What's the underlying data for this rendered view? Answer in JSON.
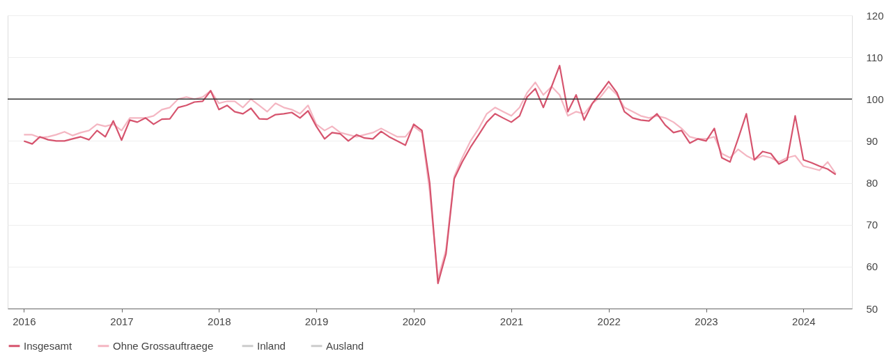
{
  "chart_data": {
    "type": "line",
    "x": [
      "2016-01",
      "2016-02",
      "2016-03",
      "2016-04",
      "2016-05",
      "2016-06",
      "2016-07",
      "2016-08",
      "2016-09",
      "2016-10",
      "2016-11",
      "2016-12",
      "2017-01",
      "2017-02",
      "2017-03",
      "2017-04",
      "2017-05",
      "2017-06",
      "2017-07",
      "2017-08",
      "2017-09",
      "2017-10",
      "2017-11",
      "2017-12",
      "2018-01",
      "2018-02",
      "2018-03",
      "2018-04",
      "2018-05",
      "2018-06",
      "2018-07",
      "2018-08",
      "2018-09",
      "2018-10",
      "2018-11",
      "2018-12",
      "2019-01",
      "2019-02",
      "2019-03",
      "2019-04",
      "2019-05",
      "2019-06",
      "2019-07",
      "2019-08",
      "2019-09",
      "2019-10",
      "2019-11",
      "2019-12",
      "2020-01",
      "2020-02",
      "2020-03",
      "2020-04",
      "2020-05",
      "2020-06",
      "2020-07",
      "2020-08",
      "2020-09",
      "2020-10",
      "2020-11",
      "2020-12",
      "2021-01",
      "2021-02",
      "2021-03",
      "2021-04",
      "2021-05",
      "2021-06",
      "2021-07",
      "2021-08",
      "2021-09",
      "2021-10",
      "2021-11",
      "2021-12",
      "2022-01",
      "2022-02",
      "2022-03",
      "2022-04",
      "2022-05",
      "2022-06",
      "2022-07",
      "2022-08",
      "2022-09",
      "2022-10",
      "2022-11",
      "2022-12",
      "2023-01",
      "2023-02",
      "2023-03",
      "2023-04",
      "2023-05",
      "2023-06",
      "2023-07",
      "2023-08",
      "2023-09",
      "2023-10",
      "2023-11",
      "2023-12",
      "2024-01",
      "2024-02",
      "2024-03",
      "2024-04",
      "2024-05"
    ],
    "series": [
      {
        "name": "Insgesamt",
        "color": "#d6546e",
        "values": [
          90,
          89.3,
          91,
          90.3,
          90,
          90,
          90.5,
          91,
          90.3,
          92.5,
          91,
          94.8,
          90.2,
          95,
          94.5,
          95.5,
          94,
          95.2,
          95.3,
          98,
          98.5,
          99.3,
          99.5,
          102,
          97.5,
          98.5,
          97,
          96.5,
          97.8,
          95.3,
          95.2,
          96.3,
          96.5,
          96.8,
          95.5,
          97.2,
          93.5,
          90.5,
          92,
          91.7,
          90,
          91.5,
          90.7,
          90.5,
          92.3,
          91,
          90,
          89,
          94,
          92.5,
          80,
          56,
          63,
          81,
          85,
          88.5,
          91.5,
          94.5,
          96.5,
          95.5,
          94.5,
          96,
          100.5,
          102.5,
          98,
          103,
          108,
          97,
          101,
          95,
          99,
          101.5,
          104.2,
          101.5,
          97,
          95.5,
          95,
          94.8,
          96.5,
          93.8,
          92,
          92.5,
          89.5,
          90.5,
          90,
          93,
          86,
          85,
          90.5,
          96.5,
          85.5,
          87.5,
          87,
          84.5,
          85.5,
          96,
          85.5,
          84.8,
          84,
          83.3,
          82
        ]
      },
      {
        "name": "Ohne  Grossauftraege",
        "color": "#f4b6c2",
        "values": [
          91.5,
          91.5,
          90.8,
          91,
          91.5,
          92.2,
          91.3,
          92,
          92.5,
          94,
          93.5,
          94,
          92.5,
          95.5,
          95.5,
          95.5,
          96,
          97.5,
          98,
          100,
          100.5,
          100,
          100.5,
          102,
          99,
          99.5,
          99.5,
          98,
          100,
          98.5,
          97,
          99,
          98,
          97.5,
          96.5,
          98.5,
          94,
          92.5,
          93.5,
          92,
          91.5,
          91,
          91.5,
          92,
          93,
          92,
          91,
          91,
          93.5,
          92,
          78,
          57,
          64,
          81.5,
          86,
          90,
          93,
          96.5,
          98,
          97,
          96,
          98,
          101.5,
          104,
          101,
          103,
          101,
          96,
          97,
          96.5,
          99,
          100.5,
          103,
          101,
          98,
          97,
          96,
          95.5,
          96,
          95.5,
          94.5,
          93,
          91,
          90.5,
          90.5,
          91,
          87,
          86,
          88,
          86.5,
          85.5,
          86.5,
          86,
          85,
          86,
          86.5,
          84,
          83.5,
          83,
          85,
          82.2
        ]
      },
      {
        "name": "Inland",
        "color": "#cccccc",
        "values": [
          null,
          null,
          null,
          null,
          null,
          null,
          null,
          null,
          null,
          null,
          null,
          null,
          null,
          null,
          null,
          null,
          null,
          null,
          null,
          null,
          null,
          null,
          null,
          null,
          null,
          null,
          null,
          null,
          null,
          null,
          null,
          null,
          null,
          null,
          null,
          null,
          null,
          null,
          null,
          null,
          null,
          null,
          null,
          null,
          null,
          null,
          null,
          null,
          null,
          null,
          null,
          null,
          null,
          null,
          null,
          null,
          null,
          null,
          null,
          null,
          null,
          null,
          null,
          null,
          null,
          null,
          null,
          null,
          null,
          null,
          null,
          null,
          null,
          null,
          null,
          null,
          null,
          null,
          null,
          null,
          null,
          null,
          null,
          null,
          null,
          null,
          null,
          null,
          null,
          null,
          null,
          null,
          null,
          null,
          null,
          null,
          null,
          null,
          null,
          null,
          null
        ]
      },
      {
        "name": "Ausland",
        "color": "#cccccc",
        "values": [
          null,
          null,
          null,
          null,
          null,
          null,
          null,
          null,
          null,
          null,
          null,
          null,
          null,
          null,
          null,
          null,
          null,
          null,
          null,
          null,
          null,
          null,
          null,
          null,
          null,
          null,
          null,
          null,
          null,
          null,
          null,
          null,
          null,
          null,
          null,
          null,
          null,
          null,
          null,
          null,
          null,
          null,
          null,
          null,
          null,
          null,
          null,
          null,
          null,
          null,
          null,
          null,
          null,
          null,
          null,
          null,
          null,
          null,
          null,
          null,
          null,
          null,
          null,
          null,
          null,
          null,
          null,
          null,
          null,
          null,
          null,
          null,
          null,
          null,
          null,
          null,
          null,
          null,
          null,
          null,
          null,
          null,
          null,
          null,
          null,
          null,
          null,
          null,
          null,
          null,
          null,
          null,
          null,
          null,
          null,
          null,
          null,
          null,
          null,
          null,
          null
        ]
      }
    ],
    "xlim": [
      "2015-11",
      "2024-07"
    ],
    "xticks": [
      "2016",
      "2017",
      "2018",
      "2019",
      "2020",
      "2021",
      "2022",
      "2023",
      "2024"
    ],
    "ylim": [
      50,
      120
    ],
    "yticks": [
      50,
      60,
      70,
      80,
      90,
      100,
      110,
      120
    ],
    "ref_lines": [
      {
        "axis": "y",
        "value": 100,
        "color": "#333333"
      }
    ],
    "grid": "y",
    "legend": "bottom"
  }
}
